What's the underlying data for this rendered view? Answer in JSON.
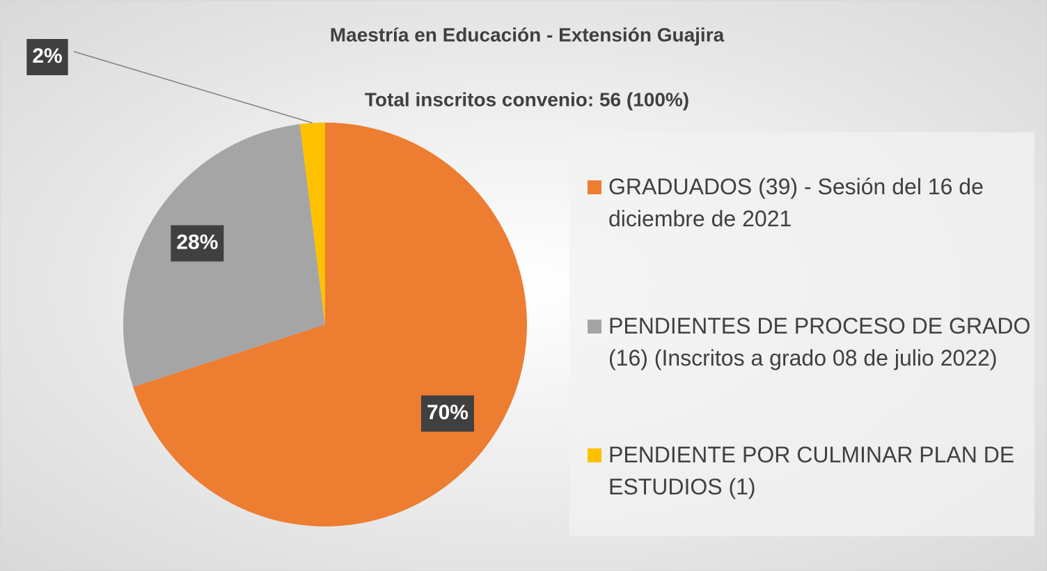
{
  "chart_data": {
    "type": "pie",
    "title": "Maestría en Educación - Extensión Guajira",
    "subtitle": "Total inscritos convenio: 56 (100%)",
    "categories": [
      "GRADUADOS (39) - Sesión del 16 de diciembre de 2021",
      "PENDIENTES DE PROCESO DE GRADO (16) (Inscritos a grado 08 de julio 2022)",
      "PENDIENTE POR CULMINAR PLAN DE ESTUDIOS (1)"
    ],
    "values": [
      70,
      28,
      2
    ],
    "value_labels": [
      "70%",
      "28%",
      "2%"
    ],
    "colors": [
      "#ed7d31",
      "#a5a5a5",
      "#ffc000"
    ],
    "legend": "right"
  }
}
